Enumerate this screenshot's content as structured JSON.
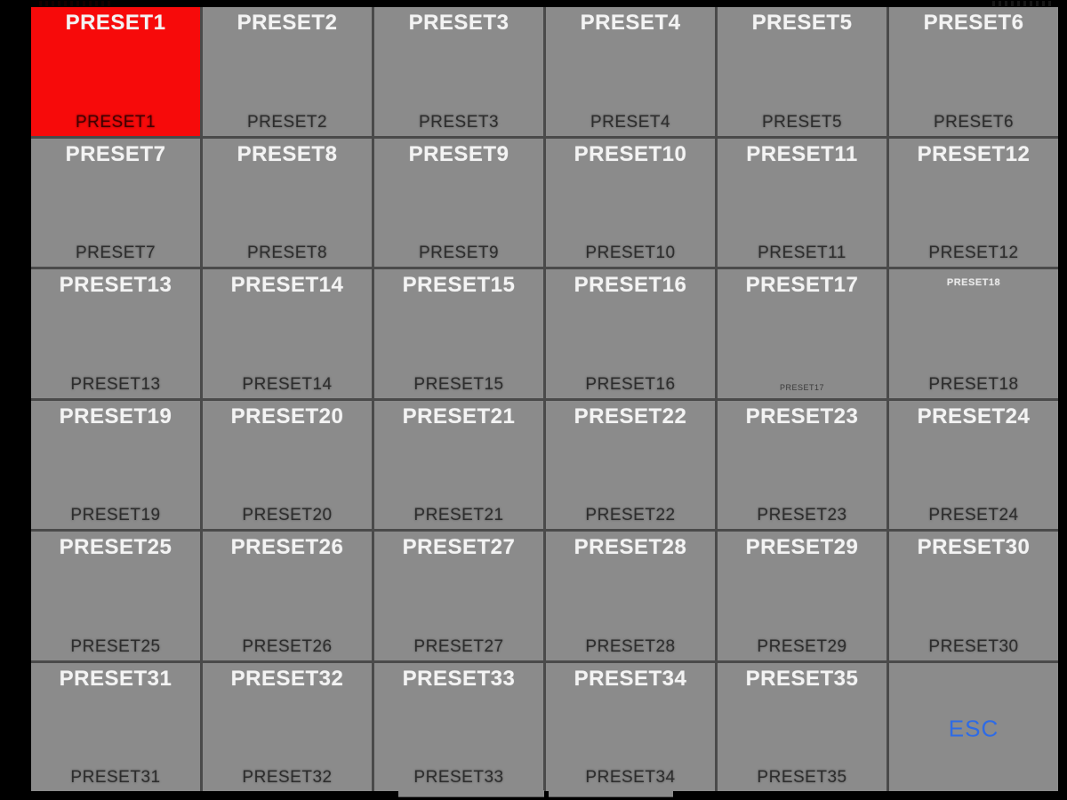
{
  "app": {
    "name": "preset-recall-panel",
    "colors": {
      "background": "#000000",
      "cell": "#8b8b8b",
      "grid_line": "#4a4a4a",
      "selected_cell": "#f70a0a",
      "title_text": "#f3f3f3",
      "label_text": "#2d2d2d",
      "esc_text": "#2e6be6"
    }
  },
  "grid": {
    "rows": 6,
    "cols": 6,
    "cells": [
      {
        "title": "PRESET1",
        "label": "PRESET1",
        "selected": true
      },
      {
        "title": "PRESET2",
        "label": "PRESET2"
      },
      {
        "title": "PRESET3",
        "label": "PRESET3"
      },
      {
        "title": "PRESET4",
        "label": "PRESET4"
      },
      {
        "title": "PRESET5",
        "label": "PRESET5"
      },
      {
        "title": "PRESET6",
        "label": "PRESET6"
      },
      {
        "title": "PRESET7",
        "label": "PRESET7"
      },
      {
        "title": "PRESET8",
        "label": "PRESET8"
      },
      {
        "title": "PRESET9",
        "label": "PRESET9"
      },
      {
        "title": "PRESET10",
        "label": "PRESET10"
      },
      {
        "title": "PRESET11",
        "label": "PRESET11"
      },
      {
        "title": "PRESET12",
        "label": "PRESET12"
      },
      {
        "title": "PRESET13",
        "label": "PRESET13"
      },
      {
        "title": "PRESET14",
        "label": "PRESET14"
      },
      {
        "title": "PRESET15",
        "label": "PRESET15"
      },
      {
        "title": "PRESET16",
        "label": "PRESET16"
      },
      {
        "title": "PRESET17",
        "label": "PRESET17",
        "label_small": true
      },
      {
        "title": "PRESET18",
        "label": "PRESET18",
        "title_small": true
      },
      {
        "title": "PRESET19",
        "label": "PRESET19"
      },
      {
        "title": "PRESET20",
        "label": "PRESET20"
      },
      {
        "title": "PRESET21",
        "label": "PRESET21"
      },
      {
        "title": "PRESET22",
        "label": "PRESET22"
      },
      {
        "title": "PRESET23",
        "label": "PRESET23"
      },
      {
        "title": "PRESET24",
        "label": "PRESET24"
      },
      {
        "title": "PRESET25",
        "label": "PRESET25"
      },
      {
        "title": "PRESET26",
        "label": "PRESET26"
      },
      {
        "title": "PRESET27",
        "label": "PRESET27"
      },
      {
        "title": "PRESET28",
        "label": "PRESET28"
      },
      {
        "title": "PRESET29",
        "label": "PRESET29"
      },
      {
        "title": "PRESET30",
        "label": "PRESET30"
      },
      {
        "title": "PRESET31",
        "label": "PRESET31"
      },
      {
        "title": "PRESET32",
        "label": "PRESET32"
      },
      {
        "title": "PRESET33",
        "label": "PRESET33"
      },
      {
        "title": "PRESET34",
        "label": "PRESET34"
      },
      {
        "title": "PRESET35",
        "label": "PRESET35"
      },
      {
        "title": "",
        "label": "",
        "esc": "ESC"
      }
    ]
  }
}
